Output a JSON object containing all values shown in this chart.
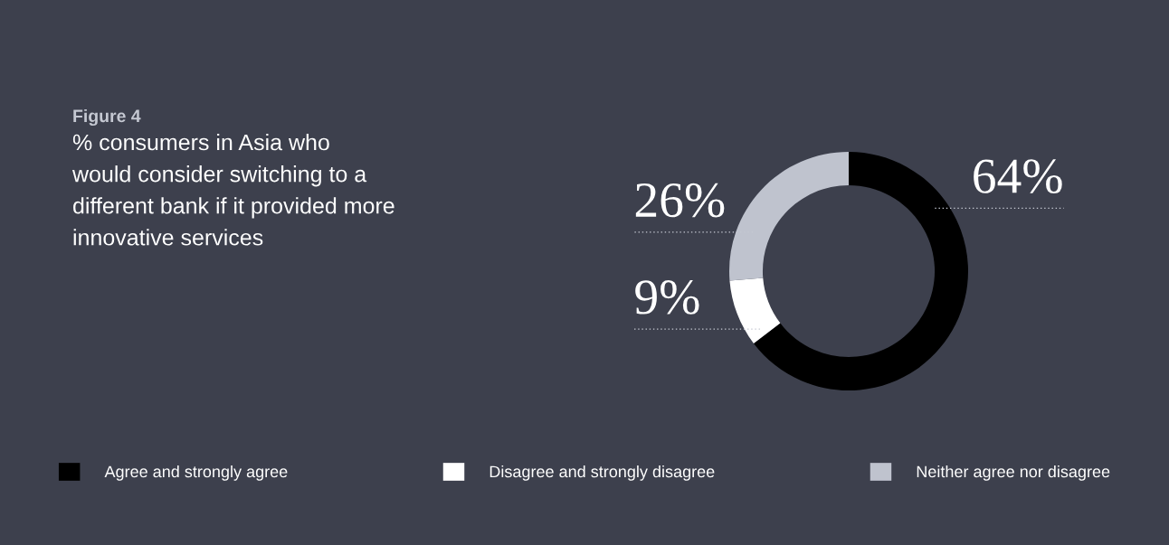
{
  "chart_data": {
    "type": "donut",
    "title": "Figure 4",
    "subtitle": "% consumers in Asia who\nwould consider switching to a\ndifferent bank if it provided more\ninnovative services",
    "categories": [
      "Agree and strongly agree",
      "Disagree and strongly disagree",
      "Neither agree nor disagree"
    ],
    "values": [
      64,
      9,
      26
    ],
    "colors": [
      "#000000",
      "#ffffff",
      "#bfc3ce"
    ],
    "value_labels": [
      "64%",
      "9%",
      "26%"
    ],
    "legend": "bottom"
  }
}
